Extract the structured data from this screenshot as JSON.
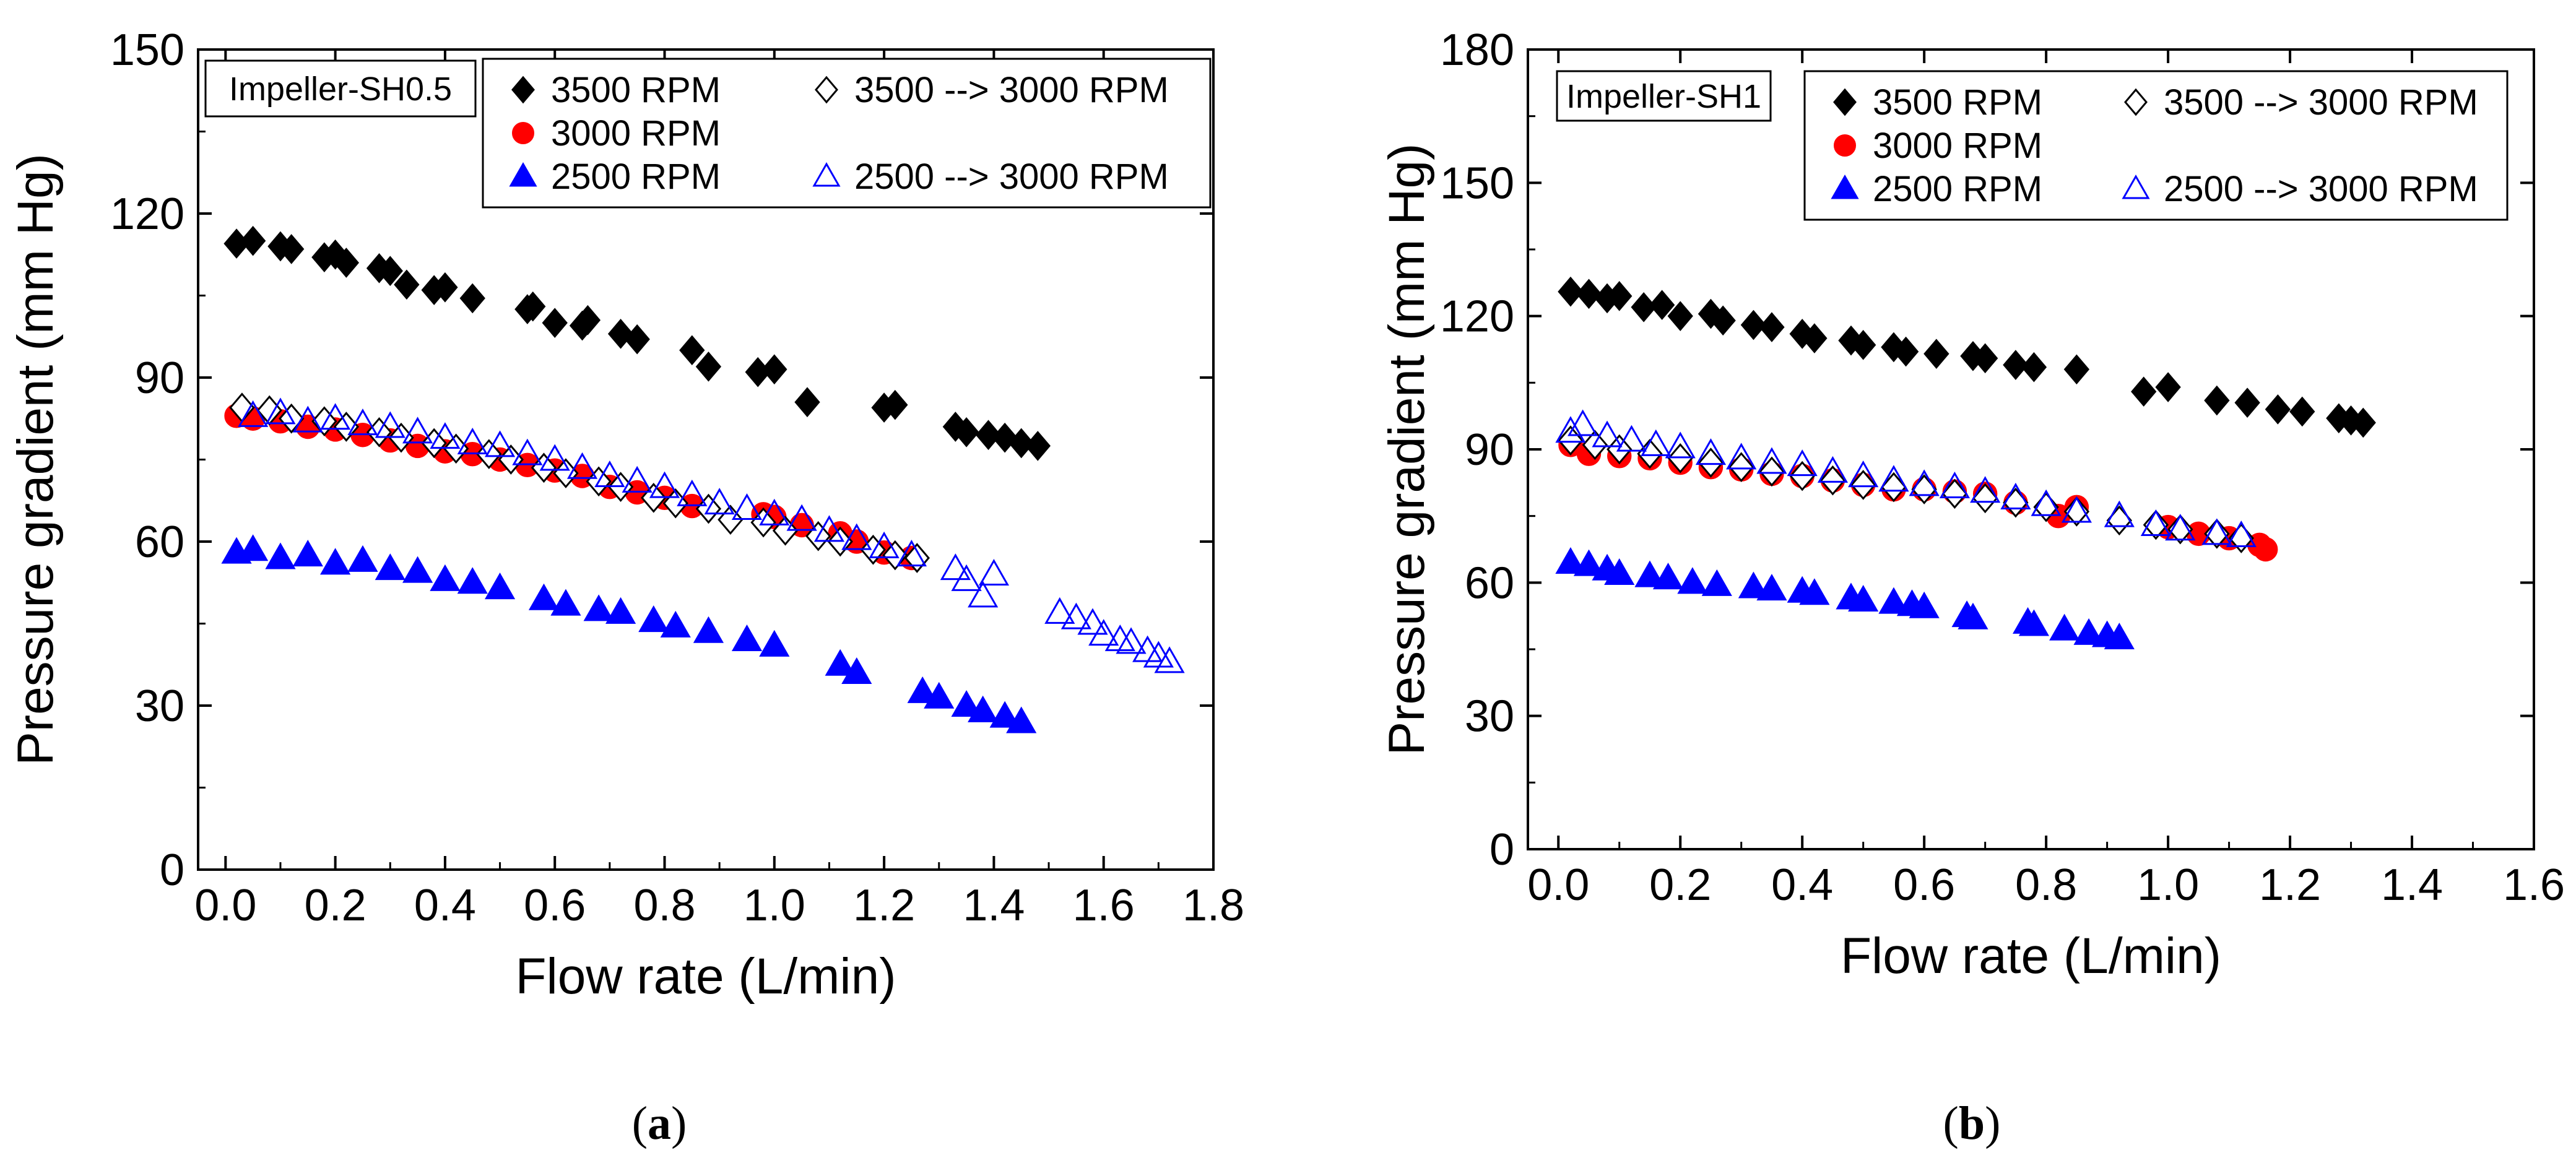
{
  "figure": {
    "captions": [
      "(a)",
      "(b)"
    ]
  },
  "chart_data": [
    {
      "type": "scatter",
      "panel": "(a)",
      "title": "",
      "inset_label": "Impeller-SH0.5",
      "xlabel": "Flow rate (L/min)",
      "ylabel": "Pressure gradient (mm Hg)",
      "xlim": [
        -0.05,
        1.8
      ],
      "ylim": [
        0,
        150
      ],
      "xticks": [
        "0.0",
        "0.2",
        "0.4",
        "0.6",
        "0.8",
        "1.0",
        "1.2",
        "1.4",
        "1.6",
        "1.8"
      ],
      "yticks": [
        "0",
        "30",
        "60",
        "90",
        "120",
        "150"
      ],
      "grid": false,
      "legend_position": "top-right",
      "series": [
        {
          "name": "3500 RPM",
          "marker": "diamond-filled",
          "color": "#000000",
          "x": [
            0.02,
            0.05,
            0.1,
            0.12,
            0.18,
            0.2,
            0.22,
            0.28,
            0.3,
            0.33,
            0.38,
            0.4,
            0.45,
            0.55,
            0.56,
            0.6,
            0.65,
            0.66,
            0.72,
            0.75,
            0.85,
            0.88,
            0.97,
            1.0,
            1.06,
            1.2,
            1.22,
            1.33,
            1.35,
            1.39,
            1.42,
            1.45,
            1.48
          ],
          "y": [
            114.5,
            115,
            114,
            113.5,
            112,
            112.5,
            111,
            110,
            109.5,
            107,
            106,
            106.5,
            104.5,
            102.5,
            103,
            100,
            99.5,
            100.5,
            98,
            97,
            95,
            92,
            91,
            91.5,
            85.5,
            84.5,
            85,
            81,
            80,
            79.5,
            79,
            78,
            77.5
          ]
        },
        {
          "name": "3000 RPM",
          "marker": "circle-filled",
          "color": "#ff0000",
          "x": [
            0.02,
            0.05,
            0.1,
            0.15,
            0.2,
            0.25,
            0.3,
            0.35,
            0.4,
            0.45,
            0.5,
            0.55,
            0.6,
            0.65,
            0.7,
            0.75,
            0.8,
            0.85,
            0.98,
            1.0,
            1.05,
            1.12,
            1.15,
            1.2,
            1.25
          ],
          "y": [
            83,
            82.5,
            82,
            81,
            80.5,
            79.5,
            78.5,
            77.5,
            76.5,
            76,
            75,
            74,
            73,
            72,
            70,
            69,
            68,
            66.5,
            65,
            64.5,
            63,
            61.5,
            60,
            58,
            57
          ]
        },
        {
          "name": "2500 RPM",
          "marker": "triangle-filled",
          "color": "#0000ff",
          "x": [
            0.02,
            0.05,
            0.1,
            0.15,
            0.2,
            0.25,
            0.3,
            0.35,
            0.4,
            0.45,
            0.5,
            0.58,
            0.62,
            0.68,
            0.72,
            0.78,
            0.82,
            0.88,
            0.95,
            1.0,
            1.12,
            1.15,
            1.27,
            1.3,
            1.35,
            1.38,
            1.42,
            1.45
          ],
          "y": [
            58,
            58.5,
            57,
            57.5,
            56,
            56.5,
            55,
            54.5,
            53,
            52.5,
            51.5,
            49.5,
            48.5,
            47.5,
            47,
            45.5,
            44.5,
            43.5,
            42,
            41,
            37.5,
            36,
            32.5,
            31.5,
            30,
            29,
            28,
            27
          ]
        },
        {
          "name": "3500 --> 3000 RPM",
          "marker": "diamond-open",
          "color": "#000000",
          "x": [
            0.03,
            0.08,
            0.12,
            0.18,
            0.22,
            0.28,
            0.32,
            0.38,
            0.42,
            0.48,
            0.52,
            0.58,
            0.62,
            0.68,
            0.72,
            0.78,
            0.82,
            0.88,
            0.92,
            0.98,
            1.02,
            1.08,
            1.12,
            1.18,
            1.22,
            1.26
          ],
          "y": [
            84.5,
            84,
            82.5,
            82,
            81,
            80,
            79,
            78,
            77,
            76,
            75,
            73.5,
            72.5,
            71,
            70,
            68,
            67,
            66,
            64,
            63.5,
            62,
            61,
            60,
            58.5,
            57.5,
            57
          ]
        },
        {
          "name": "2500 --> 3000 RPM",
          "marker": "triangle-open",
          "color": "#0000ff",
          "x": [
            0.05,
            0.1,
            0.15,
            0.2,
            0.25,
            0.3,
            0.35,
            0.4,
            0.45,
            0.5,
            0.55,
            0.6,
            0.65,
            0.7,
            0.75,
            0.8,
            0.85,
            0.9,
            0.95,
            1.0,
            1.05,
            1.1,
            1.15,
            1.2,
            1.25,
            1.33,
            1.35,
            1.38,
            1.4,
            1.52,
            1.55,
            1.58,
            1.6,
            1.63,
            1.65,
            1.68,
            1.7,
            1.72
          ],
          "y": [
            83,
            83.5,
            82,
            82.5,
            81.5,
            81,
            80,
            79,
            78,
            77.5,
            76,
            75,
            73.5,
            72,
            71,
            70,
            68.5,
            67,
            66,
            65,
            64,
            62,
            60.5,
            59,
            57.5,
            55,
            53,
            50,
            54,
            47,
            46,
            45,
            43,
            42,
            41.5,
            40,
            39,
            38
          ]
        }
      ]
    },
    {
      "type": "scatter",
      "panel": "(b)",
      "title": "",
      "inset_label": "Impeller-SH1",
      "xlabel": "Flow rate (L/min)",
      "ylabel": "Pressure gradient (mm Hg)",
      "xlim": [
        -0.05,
        1.6
      ],
      "ylim": [
        0,
        180
      ],
      "xticks": [
        "0.0",
        "0.2",
        "0.4",
        "0.6",
        "0.8",
        "1.0",
        "1.2",
        "1.4",
        "1.6"
      ],
      "yticks": [
        "0",
        "30",
        "60",
        "90",
        "120",
        "150",
        "180"
      ],
      "grid": false,
      "legend_position": "top-right",
      "series": [
        {
          "name": "3500 RPM",
          "marker": "diamond-filled",
          "color": "#000000",
          "x": [
            0.02,
            0.05,
            0.08,
            0.1,
            0.14,
            0.17,
            0.2,
            0.25,
            0.27,
            0.32,
            0.35,
            0.4,
            0.42,
            0.48,
            0.5,
            0.55,
            0.57,
            0.62,
            0.68,
            0.7,
            0.75,
            0.78,
            0.85,
            0.96,
            1.0,
            1.08,
            1.13,
            1.18,
            1.22,
            1.28,
            1.3,
            1.32
          ],
          "y": [
            125.5,
            125,
            124,
            124.5,
            122,
            122.5,
            120,
            120.5,
            119,
            118,
            117.5,
            116,
            115,
            114.5,
            113.5,
            113,
            112,
            111.5,
            111,
            110.5,
            109,
            108.5,
            108,
            103,
            104,
            101,
            100.5,
            99,
            98.5,
            97,
            96.5,
            96
          ]
        },
        {
          "name": "3000 RPM",
          "marker": "circle-filled",
          "color": "#ff0000",
          "x": [
            0.02,
            0.05,
            0.1,
            0.15,
            0.2,
            0.25,
            0.3,
            0.35,
            0.4,
            0.45,
            0.5,
            0.55,
            0.6,
            0.65,
            0.7,
            0.75,
            0.82,
            0.85,
            1.0,
            1.05,
            1.1,
            1.15,
            1.16
          ],
          "y": [
            91,
            89,
            88.5,
            88,
            87,
            86,
            85.5,
            84.5,
            84,
            83,
            82,
            81,
            81,
            80.5,
            80,
            78,
            75,
            77,
            72.5,
            71,
            70,
            68.5,
            67.5
          ]
        },
        {
          "name": "2500 RPM",
          "marker": "triangle-filled",
          "color": "#0000ff",
          "x": [
            0.02,
            0.05,
            0.08,
            0.1,
            0.15,
            0.18,
            0.22,
            0.26,
            0.32,
            0.35,
            0.4,
            0.42,
            0.48,
            0.5,
            0.55,
            0.58,
            0.6,
            0.67,
            0.68,
            0.77,
            0.78,
            0.83,
            0.87,
            0.9,
            0.92
          ],
          "y": [
            64.5,
            64,
            63,
            62,
            61.5,
            61,
            60,
            59.5,
            59,
            58.5,
            58,
            57.5,
            56.5,
            56,
            55.5,
            55,
            54.5,
            52.5,
            52,
            51,
            50.5,
            49.5,
            48.5,
            48,
            47.5
          ]
        },
        {
          "name": "3500 --> 3000 RPM",
          "marker": "diamond-open",
          "color": "#000000",
          "x": [
            0.02,
            0.06,
            0.1,
            0.15,
            0.2,
            0.25,
            0.3,
            0.35,
            0.4,
            0.45,
            0.5,
            0.55,
            0.6,
            0.65,
            0.7,
            0.75,
            0.8,
            0.85,
            0.92,
            0.98,
            1.02,
            1.08,
            1.12
          ],
          "y": [
            92,
            91,
            90,
            89,
            88,
            87,
            86,
            85,
            84,
            83,
            82,
            81.5,
            81,
            80,
            79,
            78,
            77,
            76,
            74,
            73,
            72,
            71,
            70
          ]
        },
        {
          "name": "2500 --> 3000 RPM",
          "marker": "triangle-open",
          "color": "#0000ff",
          "x": [
            0.02,
            0.04,
            0.08,
            0.12,
            0.16,
            0.2,
            0.25,
            0.3,
            0.35,
            0.4,
            0.45,
            0.5,
            0.55,
            0.6,
            0.65,
            0.7,
            0.75,
            0.8,
            0.85,
            0.92,
            0.98,
            1.02,
            1.08,
            1.12
          ],
          "y": [
            94,
            95.5,
            93,
            92,
            91,
            90.5,
            89,
            88,
            87,
            86.5,
            85,
            84,
            83,
            82,
            81.5,
            80.5,
            79,
            77.5,
            76,
            75,
            73,
            72,
            71,
            70.5
          ]
        }
      ]
    }
  ]
}
